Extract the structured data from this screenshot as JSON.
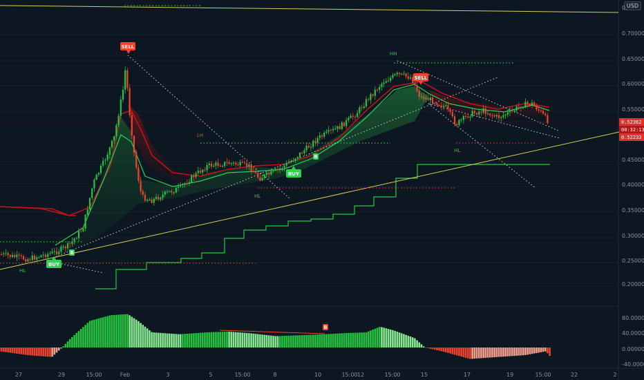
{
  "currency": "USD",
  "price_axis": {
    "labels": [
      "0.",
      "0.70000",
      "0.65000",
      "0.60000",
      "0.55000",
      "0.45000",
      "0.40000",
      "0.35000",
      "0.30000",
      "0.25000",
      "0.20000"
    ],
    "last_price": "0.52362",
    "countdown": "00:32:13",
    "support_level": "0.52233"
  },
  "oscillator_axis": {
    "labels": [
      "80.00000",
      "40.00000",
      "0.00000",
      "-40.00000"
    ]
  },
  "time_axis": {
    "labels": [
      "27",
      "29",
      "15:00",
      "Feb",
      "3",
      "5",
      "15:00",
      "8",
      "10",
      "15:00",
      "12",
      "15:00",
      "15",
      "17",
      "19",
      "15:00",
      "22",
      "2"
    ]
  },
  "signals": {
    "sell_1": "SELL",
    "sell_2": "SELL",
    "buy_1": "BUY",
    "buy_2": "BUY",
    "b_1": "B",
    "b_2": "B",
    "osc_marker": "B"
  },
  "structure": {
    "lh": "LH",
    "hh": "HH",
    "hl_1": "HL",
    "hl_2": "HL",
    "hl_3": "HL"
  },
  "colors": {
    "background": "#0d1722",
    "bull": "#26c446",
    "bear": "#f0442c",
    "trendline": "#d7cf58",
    "step_line": "#27c93f",
    "red_line": "#c0121a"
  }
}
